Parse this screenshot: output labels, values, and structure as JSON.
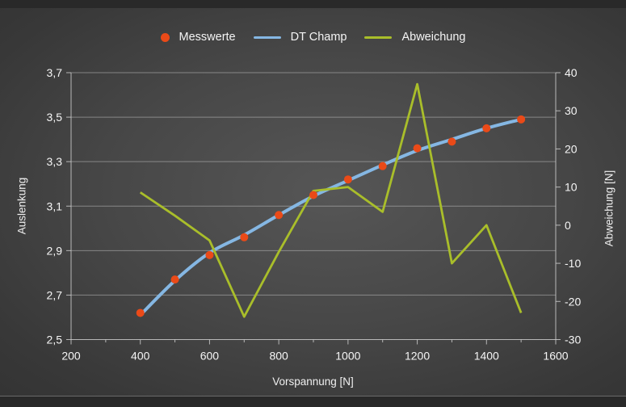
{
  "legend": {
    "position": "top-center",
    "items": [
      {
        "label": "Messwerte",
        "marker": "dot",
        "color": "#ea4a18"
      },
      {
        "label": "DT Champ",
        "marker": "line",
        "color": "#85b7e3"
      },
      {
        "label": "Abweichung",
        "marker": "line",
        "color": "#a9be2a"
      }
    ]
  },
  "axes": {
    "x": {
      "title": "Vorspannung [N]",
      "min": 200,
      "max": 1600,
      "tick_values": [
        200,
        400,
        600,
        800,
        1000,
        1200,
        1400,
        1600
      ],
      "tick_labels": [
        "200",
        "400",
        "600",
        "800",
        "1000",
        "1200",
        "1400",
        "1600"
      ],
      "minor_tick_values": [
        300,
        500,
        700,
        900,
        1100,
        1300,
        1500
      ]
    },
    "y_left": {
      "title": "Auslenkung",
      "min": 2.5,
      "max": 3.7,
      "tick_values": [
        3.7,
        3.5,
        3.3,
        3.1,
        2.9,
        2.7,
        2.5
      ],
      "tick_labels": [
        "3,7",
        "3,5",
        "3,3",
        "3,1",
        "2,9",
        "2,7",
        "2,5"
      ]
    },
    "y_right": {
      "title": "Abweichung [N]",
      "min": -30,
      "max": 40,
      "tick_values": [
        40,
        30,
        20,
        10,
        0,
        -10,
        -20,
        -30
      ],
      "tick_labels": [
        "40",
        "30",
        "20",
        "10",
        "0",
        "-10",
        "-20",
        "-30"
      ]
    }
  },
  "chart_data": {
    "type": "combo",
    "title": "",
    "xlabel": "Vorspannung [N]",
    "ylabel_left": "Auslenkung",
    "ylabel_right": "Abweichung [N]",
    "x": [
      400,
      500,
      600,
      700,
      800,
      900,
      1000,
      1100,
      1200,
      1300,
      1400,
      1500
    ],
    "xlim": [
      200,
      1600
    ],
    "ylim_left": [
      2.5,
      3.7
    ],
    "ylim_right": [
      -30,
      40
    ],
    "grid": "horizontal-only",
    "legend_position": "top",
    "series": [
      {
        "name": "Messwerte",
        "type": "scatter",
        "axis": "left",
        "color": "#ea4a18",
        "values": [
          2.62,
          2.77,
          2.88,
          2.96,
          3.06,
          3.15,
          3.22,
          3.28,
          3.36,
          3.39,
          3.45,
          3.49
        ]
      },
      {
        "name": "DT Champ",
        "type": "line",
        "smooth": true,
        "axis": "left",
        "color": "#85b7e3",
        "values": [
          2.61,
          2.765,
          2.89,
          2.97,
          3.06,
          3.145,
          3.215,
          3.285,
          3.35,
          3.4,
          3.45,
          3.49
        ]
      },
      {
        "name": "Abweichung",
        "type": "line",
        "smooth": false,
        "axis": "right",
        "color": "#a9be2a",
        "values": [
          8.6,
          2.5,
          -4,
          -24,
          -7,
          9,
          10,
          3.5,
          37,
          -10,
          0,
          -23
        ]
      }
    ]
  },
  "style": {
    "grid_color": "#c7c7c7",
    "axis_color": "#cccccc",
    "text_color": "#f5f5f5",
    "background_center": "#565656",
    "background_edge": "#343434",
    "frame_strip": "#292929"
  }
}
